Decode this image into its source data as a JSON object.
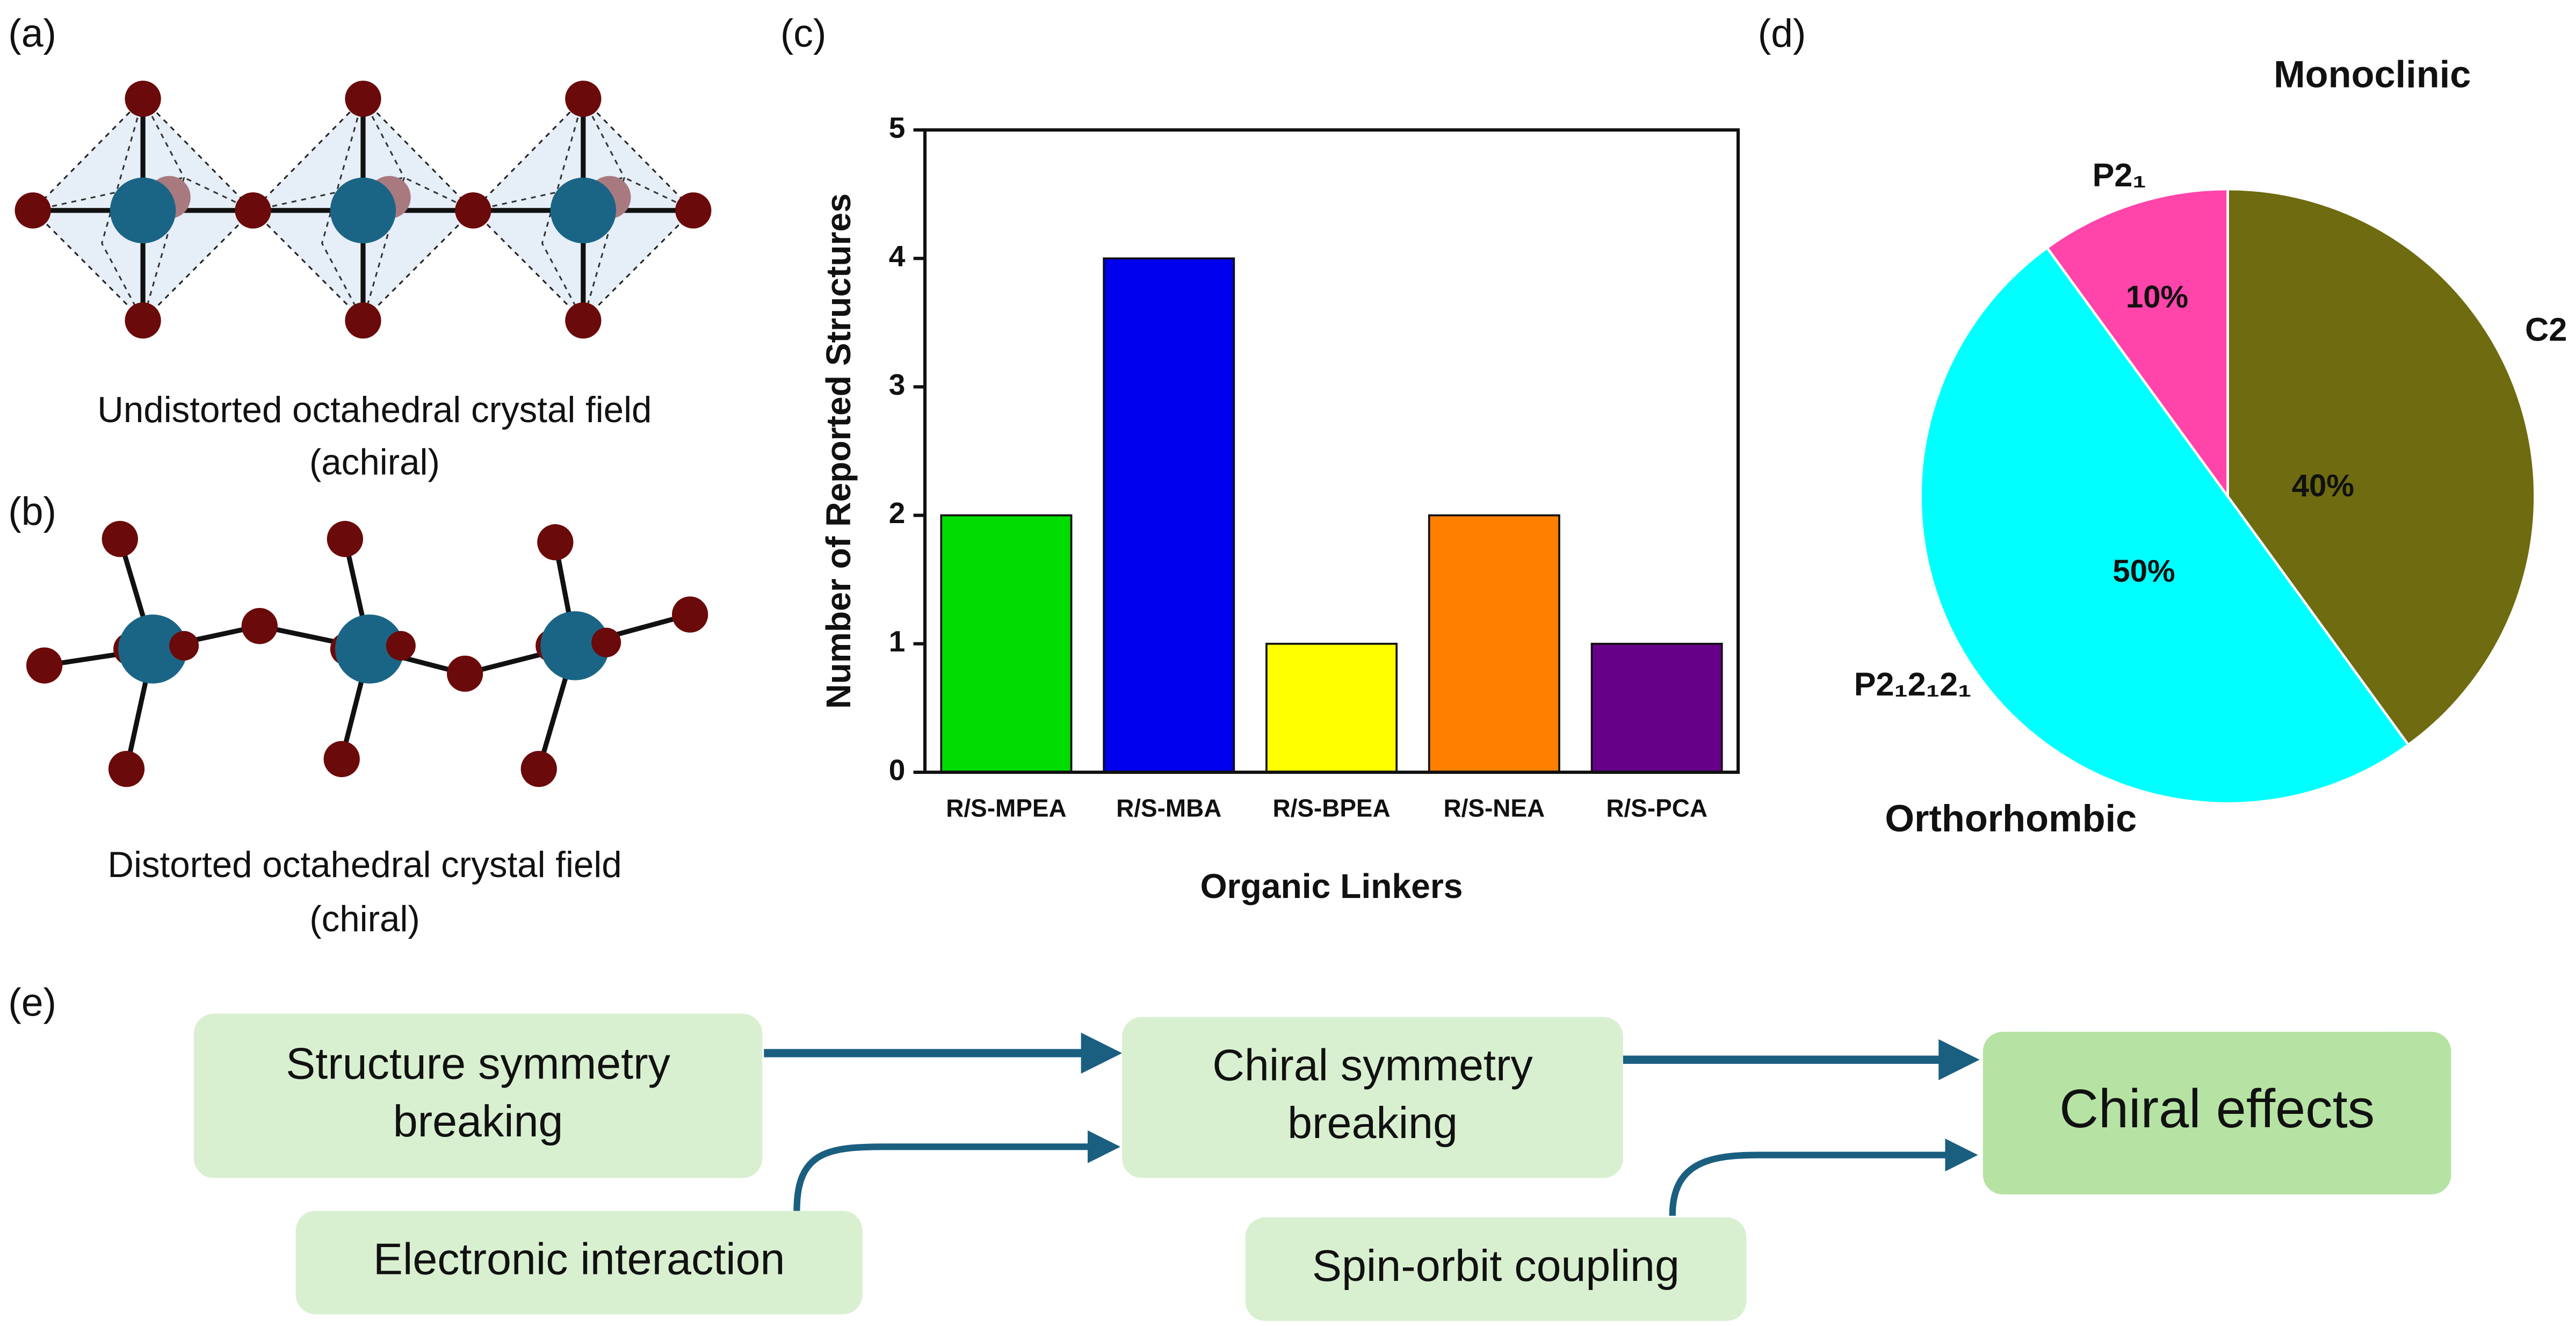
{
  "panel_a": {
    "label": "(a)",
    "caption": [
      "Undistorted octahedral crystal field",
      "(achiral)"
    ]
  },
  "panel_b": {
    "label": "(b)",
    "caption": [
      "Distorted octahedral crystal field",
      "(chiral)"
    ]
  },
  "panel_c": {
    "label": "(c)"
  },
  "panel_d": {
    "label": "(d)"
  },
  "chart_data": [
    {
      "type": "bar",
      "y_label": "Number of Reported Structures",
      "x_label": "Organic Linkers",
      "categories": [
        "R/S-MPEA",
        "R/S-MBA",
        "R/S-BPEA",
        "R/S-NEA",
        "R/S-PCA"
      ],
      "values": [
        2,
        4,
        1,
        2,
        1
      ],
      "colors": [
        "#00dd00",
        "#0000ee",
        "#ffff00",
        "#ff8000",
        "#660088"
      ],
      "ylim": [
        0,
        5
      ],
      "yticks": [
        0,
        1,
        2,
        3,
        4,
        5
      ]
    },
    {
      "type": "pie",
      "categories": [
        "C2",
        "P2₁2₁2₁",
        "P2₁"
      ],
      "values": [
        40,
        50,
        10
      ],
      "value_labels": [
        "40%",
        "50%",
        "10%"
      ],
      "colors": [
        "#6e6b10",
        "#00ffff",
        "#ff44aa"
      ],
      "annotations": [
        "Monoclinic",
        "Orthorhombic"
      ]
    }
  ],
  "panel_e": {
    "label": "(e)",
    "nodes": [
      {
        "lines": [
          "Structure symmetry",
          "breaking"
        ]
      },
      {
        "lines": [
          "Electronic interaction"
        ]
      },
      {
        "lines": [
          "Chiral symmetry",
          "breaking"
        ]
      },
      {
        "lines": [
          "Spin-orbit coupling"
        ]
      },
      {
        "lines": [
          "Chiral effects"
        ]
      }
    ]
  }
}
